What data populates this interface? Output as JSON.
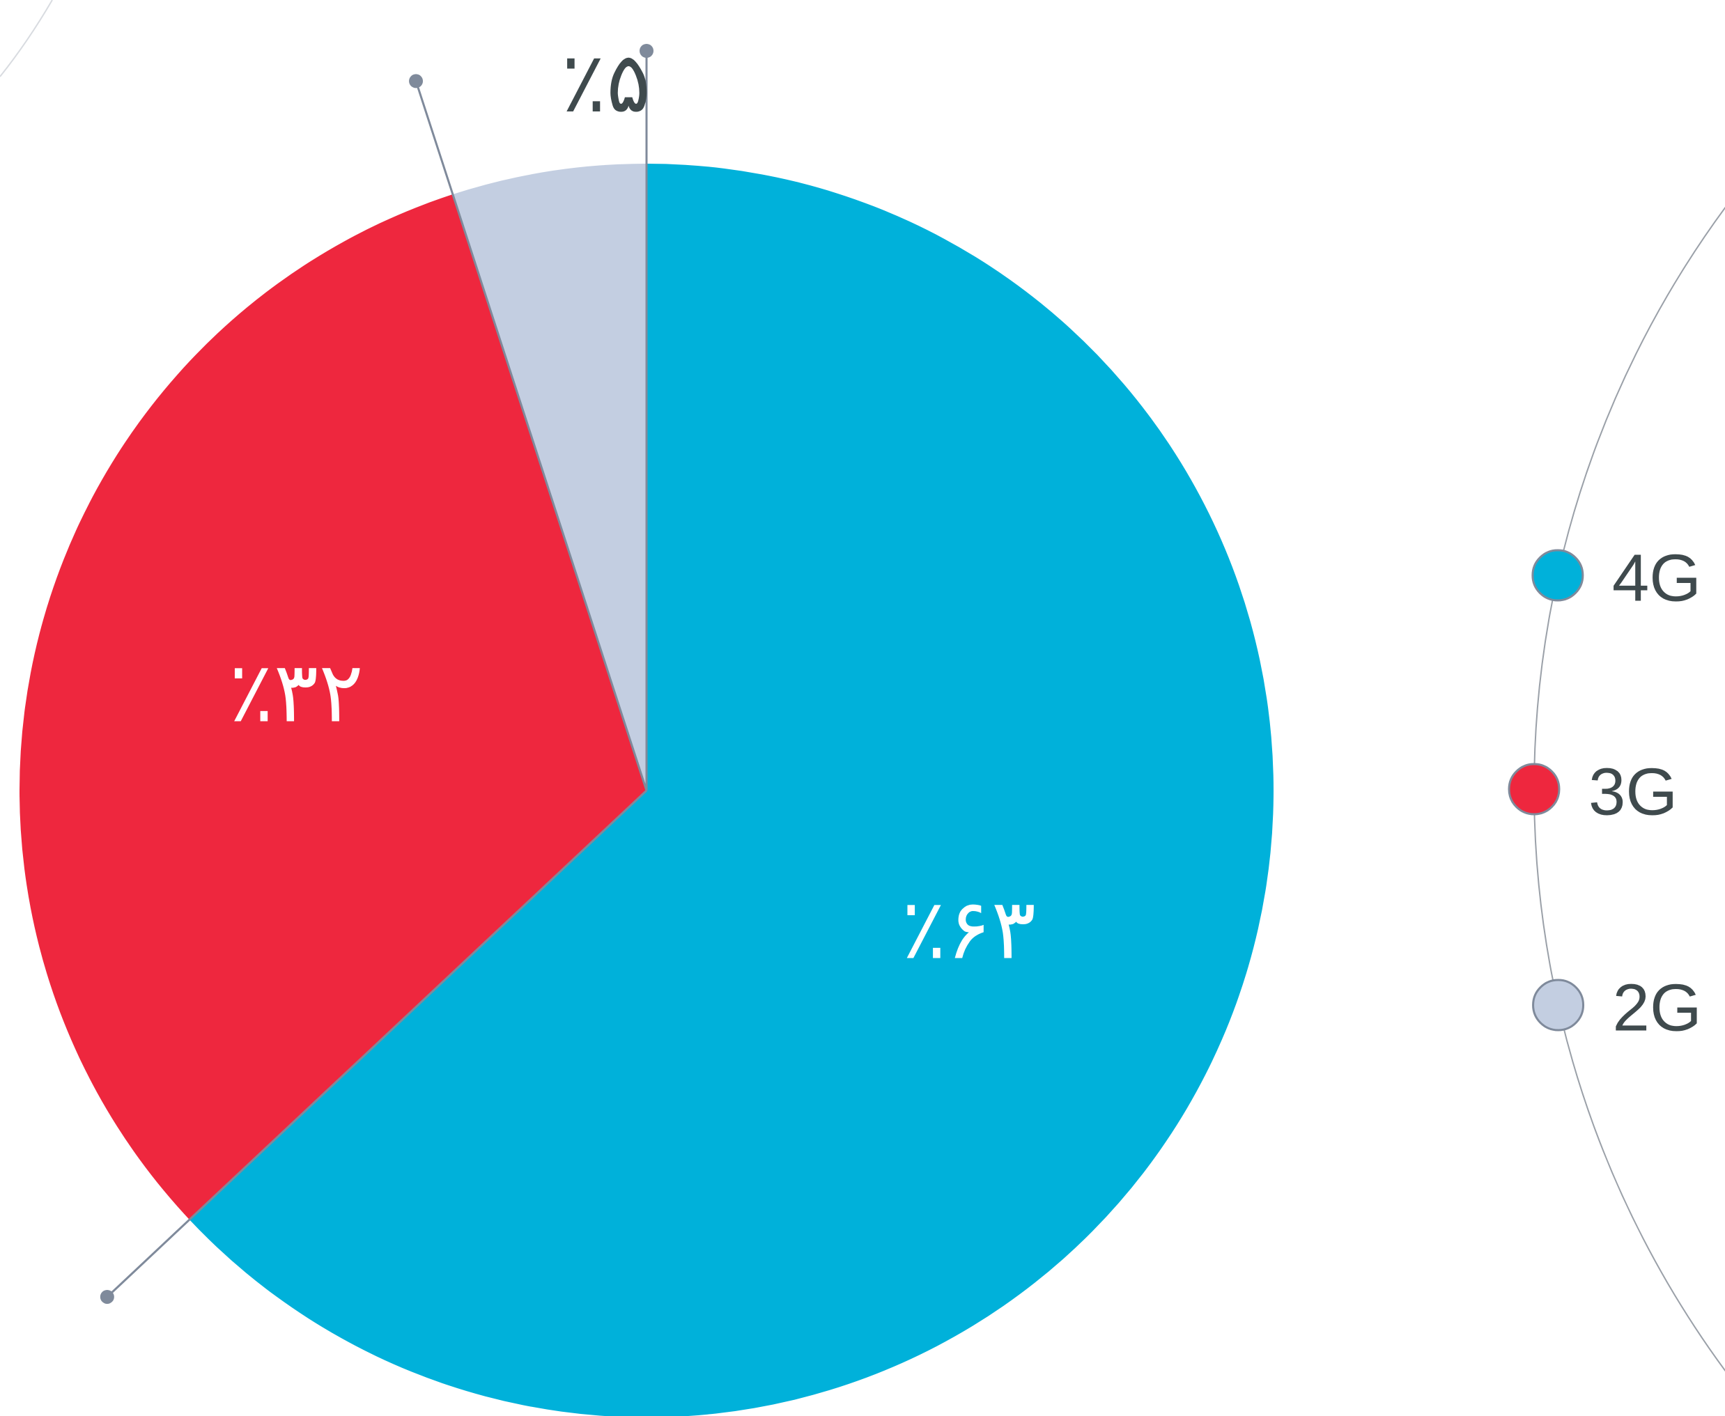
{
  "chart_data": {
    "type": "pie",
    "slices": [
      {
        "name": "4G",
        "value": 63,
        "label": "٪۶۳",
        "color": "#00b1da",
        "label_color": "#ffffff"
      },
      {
        "name": "3G",
        "value": 32,
        "label": "٪۳۲",
        "color": "#ee273e",
        "label_color": "#ffffff"
      },
      {
        "name": "2G",
        "value": 5,
        "label": "٪۵",
        "color": "#c3cee1",
        "label_color": "#3f4a4d"
      }
    ],
    "start_angle": "12 o'clock",
    "direction": "clockwise",
    "legend_position": "right",
    "legend": [
      {
        "label": "4G",
        "color": "#00b1da"
      },
      {
        "label": "3G",
        "color": "#ee273e"
      },
      {
        "label": "2G",
        "color": "#c3cee1"
      }
    ],
    "decorations": {
      "leader_line_color": "#7f8a9b",
      "legend_arc_color": "#9aa0a8",
      "legend_dot_stroke": "#7f8a9b"
    }
  }
}
